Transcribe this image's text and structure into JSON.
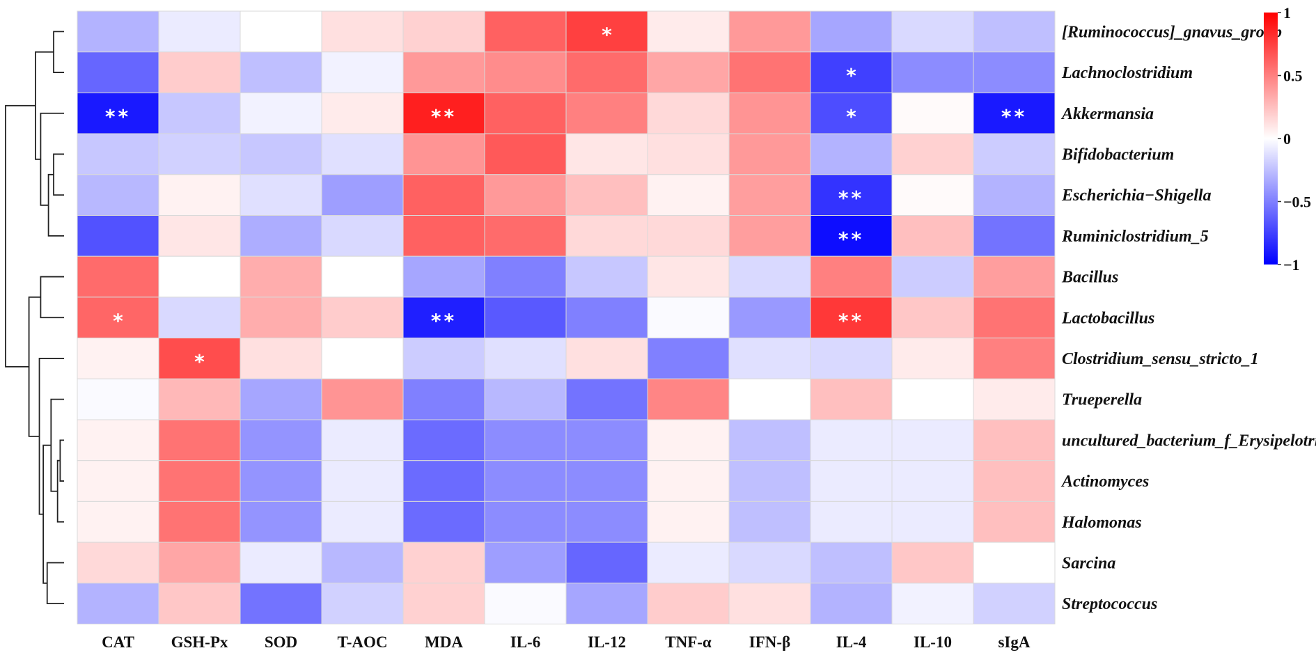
{
  "chart_data": {
    "type": "heatmap",
    "title": "",
    "columns": [
      "CAT",
      "GSH-Px",
      "SOD",
      "T-AOC",
      "MDA",
      "IL-6",
      "IL-12",
      "TNF-α",
      "IFN-β",
      "IL-4",
      "IL-10",
      "sIgA"
    ],
    "rows": [
      "[Ruminococcus]_gnavus_group",
      "Lachnoclostridium",
      "Akkermansia",
      "Bifidobacterium",
      "Escherichia−Shigella",
      "Ruminiclostridium_5",
      "Bacillus",
      "Lactobacillus",
      "Clostridium_sensu_stricto_1",
      "Trueperella",
      "uncultured_bacterium_f_Erysipelotrichaceae",
      "Actinomyces",
      "Halomonas",
      "Sarcina",
      "Streptococcus"
    ],
    "values": [
      [
        -0.3,
        -0.08,
        0.0,
        0.12,
        0.18,
        0.62,
        0.75,
        0.08,
        0.4,
        -0.35,
        -0.15,
        -0.25
      ],
      [
        -0.6,
        0.2,
        -0.25,
        -0.05,
        0.4,
        0.45,
        0.58,
        0.35,
        0.55,
        -0.75,
        -0.45,
        -0.45
      ],
      [
        -0.9,
        -0.22,
        -0.05,
        0.08,
        0.88,
        0.62,
        0.5,
        0.15,
        0.42,
        -0.7,
        0.02,
        -0.9
      ],
      [
        -0.22,
        -0.18,
        -0.22,
        -0.12,
        0.42,
        0.65,
        0.1,
        0.12,
        0.4,
        -0.3,
        0.18,
        -0.2
      ],
      [
        -0.28,
        0.05,
        -0.12,
        -0.38,
        0.62,
        0.4,
        0.25,
        0.05,
        0.38,
        -0.8,
        0.02,
        -0.3
      ],
      [
        -0.68,
        0.1,
        -0.32,
        -0.15,
        0.62,
        0.58,
        0.15,
        0.15,
        0.38,
        -0.95,
        0.25,
        -0.55
      ],
      [
        0.58,
        0.0,
        0.32,
        0.0,
        -0.35,
        -0.5,
        -0.22,
        0.1,
        -0.15,
        0.5,
        -0.2,
        0.38
      ],
      [
        0.6,
        -0.15,
        0.32,
        0.2,
        -0.88,
        -0.65,
        -0.5,
        -0.02,
        -0.4,
        0.78,
        0.22,
        0.55
      ],
      [
        0.05,
        0.7,
        0.12,
        0.0,
        -0.2,
        -0.12,
        0.12,
        -0.5,
        -0.12,
        -0.15,
        0.08,
        0.5
      ],
      [
        -0.02,
        0.28,
        -0.35,
        0.42,
        -0.5,
        -0.28,
        -0.55,
        0.48,
        0.0,
        0.25,
        0.0,
        0.08
      ],
      [
        0.05,
        0.55,
        -0.42,
        -0.08,
        -0.58,
        -0.45,
        -0.45,
        0.05,
        -0.25,
        -0.08,
        -0.08,
        0.25
      ],
      [
        0.05,
        0.55,
        -0.42,
        -0.08,
        -0.58,
        -0.45,
        -0.45,
        0.05,
        -0.25,
        -0.08,
        -0.08,
        0.25
      ],
      [
        0.05,
        0.55,
        -0.42,
        -0.08,
        -0.58,
        -0.45,
        -0.45,
        0.05,
        -0.25,
        -0.08,
        -0.08,
        0.25
      ],
      [
        0.15,
        0.35,
        -0.08,
        -0.28,
        0.18,
        -0.38,
        -0.6,
        -0.08,
        -0.15,
        -0.25,
        0.22,
        0.0
      ],
      [
        -0.3,
        0.22,
        -0.55,
        -0.18,
        0.18,
        -0.02,
        -0.35,
        0.2,
        0.12,
        -0.3,
        -0.05,
        -0.18
      ]
    ],
    "significance": [
      [
        "",
        "",
        "",
        "",
        "",
        "",
        "*",
        "",
        "",
        "",
        "",
        ""
      ],
      [
        "",
        "",
        "",
        "",
        "",
        "",
        "",
        "",
        "",
        "*",
        "",
        ""
      ],
      [
        "**",
        "",
        "",
        "",
        "**",
        "",
        "",
        "",
        "",
        "*",
        "",
        "**"
      ],
      [
        "",
        "",
        "",
        "",
        "",
        "",
        "",
        "",
        "",
        "",
        "",
        ""
      ],
      [
        "",
        "",
        "",
        "",
        "",
        "",
        "",
        "",
        "",
        "**",
        "",
        ""
      ],
      [
        "",
        "",
        "",
        "",
        "",
        "",
        "",
        "",
        "",
        "**",
        "",
        ""
      ],
      [
        "",
        "",
        "",
        "",
        "",
        "",
        "",
        "",
        "",
        "",
        "",
        ""
      ],
      [
        "*",
        "",
        "",
        "",
        "**",
        "",
        "",
        "",
        "",
        "**",
        "",
        ""
      ],
      [
        "",
        "*",
        "",
        "",
        "",
        "",
        "",
        "",
        "",
        "",
        "",
        ""
      ],
      [
        "",
        "",
        "",
        "",
        "",
        "",
        "",
        "",
        "",
        "",
        "",
        ""
      ],
      [
        "",
        "",
        "",
        "",
        "",
        "",
        "",
        "",
        "",
        "",
        "",
        ""
      ],
      [
        "",
        "",
        "",
        "",
        "",
        "",
        "",
        "",
        "",
        "",
        "",
        ""
      ],
      [
        "",
        "",
        "",
        "",
        "",
        "",
        "",
        "",
        "",
        "",
        "",
        ""
      ],
      [
        "",
        "",
        "",
        "",
        "",
        "",
        "",
        "",
        "",
        "",
        "",
        ""
      ],
      [
        "",
        "",
        "",
        "",
        "",
        "",
        "",
        "",
        "",
        "",
        "",
        ""
      ]
    ],
    "color_scale": {
      "min": -1,
      "max": 1,
      "low_color": "#0000ff",
      "mid_color": "#ffffff",
      "high_color": "#ff0000",
      "ticks": [
        {
          "value": 1,
          "label": "1"
        },
        {
          "value": 0.5,
          "label": "0.5"
        },
        {
          "value": 0,
          "label": "0"
        },
        {
          "value": -0.5,
          "label": "−0.5"
        },
        {
          "value": -1,
          "label": "−1"
        }
      ]
    },
    "row_dendrogram": [
      {
        "id": 15,
        "left": 0,
        "right": 1,
        "height": 0.08
      },
      {
        "id": 16,
        "left": 3,
        "right": 4,
        "height": 0.08
      },
      {
        "id": 17,
        "left": 16,
        "right": 5,
        "height": 0.12
      },
      {
        "id": 18,
        "left": 2,
        "right": 17,
        "height": 0.18
      },
      {
        "id": 19,
        "left": 15,
        "right": 18,
        "height": 0.22
      },
      {
        "id": 20,
        "left": 6,
        "right": 7,
        "height": 0.18
      },
      {
        "id": 21,
        "left": 10,
        "right": 11,
        "height": 0.03
      },
      {
        "id": 22,
        "left": 21,
        "right": 12,
        "height": 0.05
      },
      {
        "id": 23,
        "left": 9,
        "right": 22,
        "height": 0.1
      },
      {
        "id": 24,
        "left": 13,
        "right": 14,
        "height": 0.13
      },
      {
        "id": 25,
        "left": 23,
        "right": 24,
        "height": 0.16
      },
      {
        "id": 26,
        "left": 8,
        "right": 25,
        "height": 0.19
      },
      {
        "id": 27,
        "left": 20,
        "right": 26,
        "height": 0.27
      },
      {
        "id": 28,
        "left": 19,
        "right": 27,
        "height": 0.45
      }
    ]
  }
}
